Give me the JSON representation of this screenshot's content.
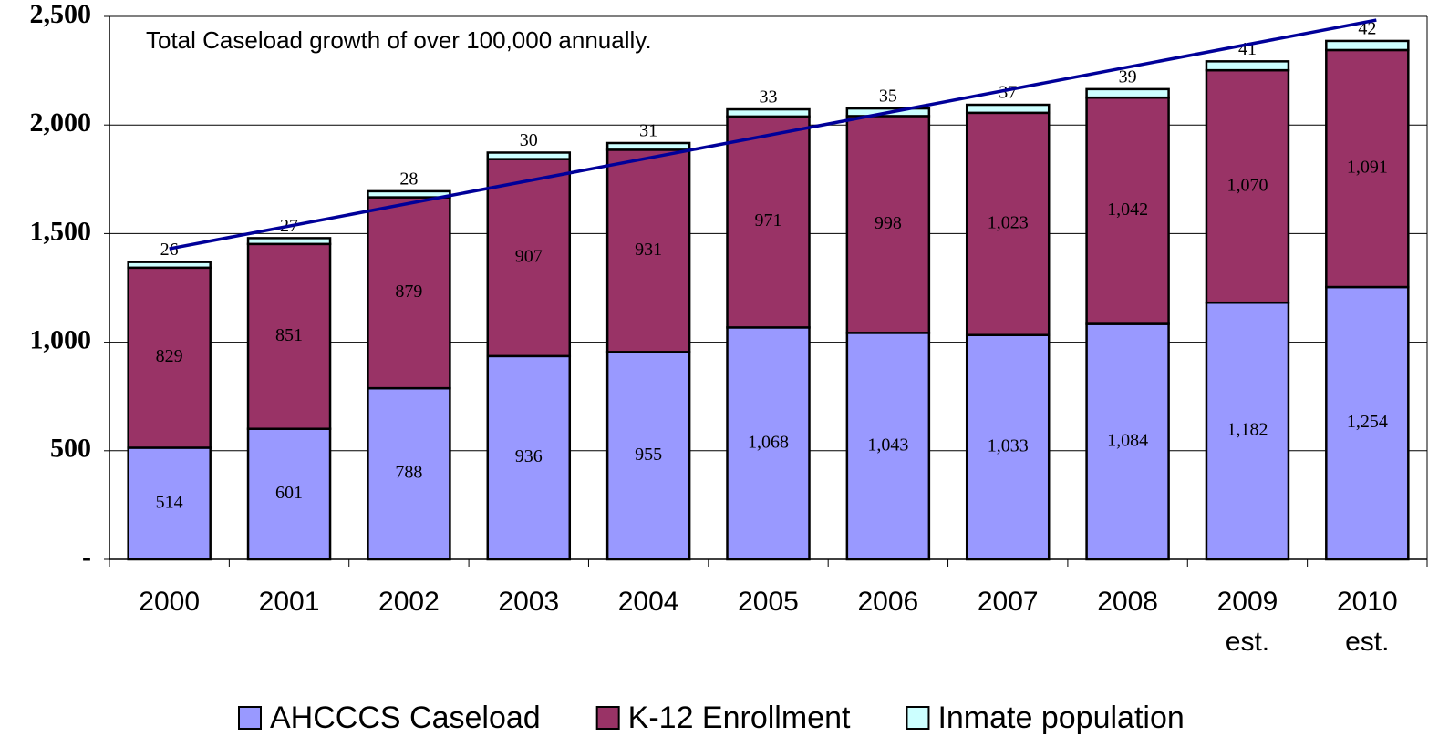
{
  "chart_data": {
    "type": "stacked_bar",
    "annotation": "Total Caseload growth of over 100,000 annually.",
    "categories": [
      "2000",
      "2001",
      "2002",
      "2003",
      "2004",
      "2005",
      "2006",
      "2007",
      "2008",
      "2009 est.",
      "2010 est."
    ],
    "series": [
      {
        "name": "AHCCCS Caseload",
        "color": "#9999ff",
        "values": [
          514,
          601,
          788,
          936,
          955,
          1068,
          1043,
          1033,
          1084,
          1182,
          1254
        ],
        "value_labels": [
          "514",
          "601",
          "788",
          "936",
          "955",
          "1,068",
          "1,043",
          "1,033",
          "1,084",
          "1,182",
          "1,254"
        ]
      },
      {
        "name": "K-12 Enrollment",
        "color": "#993366",
        "values": [
          829,
          851,
          879,
          907,
          931,
          971,
          998,
          1023,
          1042,
          1070,
          1091
        ],
        "value_labels": [
          "829",
          "851",
          "879",
          "907",
          "931",
          "971",
          "998",
          "1,023",
          "1,042",
          "1,070",
          "1,091"
        ]
      },
      {
        "name": "Inmate population",
        "color": "#ccffff",
        "values": [
          26,
          27,
          28,
          30,
          31,
          33,
          35,
          37,
          39,
          41,
          42
        ]
      }
    ],
    "trend": {
      "color": "#000099",
      "values": [
        1430,
        2483
      ]
    },
    "ylim": [
      0,
      2500
    ],
    "yticks": [
      {
        "value": 0,
        "label": "-"
      },
      500,
      {
        "value": 1000,
        "label": "1,000"
      },
      {
        "value": 1500,
        "label": "1,500"
      },
      {
        "value": 2000,
        "label": "2,000"
      },
      {
        "value": 2500,
        "label": "2,500"
      }
    ],
    "grid": true,
    "legend": "bottom"
  }
}
